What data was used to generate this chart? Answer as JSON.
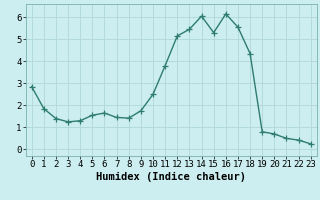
{
  "x": [
    0,
    1,
    2,
    3,
    4,
    5,
    6,
    7,
    8,
    9,
    10,
    11,
    12,
    13,
    14,
    15,
    16,
    17,
    18,
    19,
    20,
    21,
    22,
    23
  ],
  "y": [
    2.85,
    1.85,
    1.4,
    1.25,
    1.3,
    1.55,
    1.65,
    1.45,
    1.42,
    1.75,
    2.5,
    3.8,
    5.15,
    5.45,
    6.05,
    5.3,
    6.15,
    5.55,
    4.35,
    0.8,
    0.7,
    0.5,
    0.42,
    0.25
  ],
  "line_color": "#2e7d6e",
  "marker": "+",
  "markersize": 4,
  "linewidth": 1.0,
  "bg_color": "#cceef0",
  "grid_color": "#b0d8d8",
  "xlabel": "Humidex (Indice chaleur)",
  "xlabel_fontsize": 7.5,
  "tick_fontsize": 6.5,
  "ylim": [
    -0.3,
    6.6
  ],
  "xlim": [
    -0.5,
    23.5
  ],
  "yticks": [
    0,
    1,
    2,
    3,
    4,
    5,
    6
  ],
  "xticks": [
    0,
    1,
    2,
    3,
    4,
    5,
    6,
    7,
    8,
    9,
    10,
    11,
    12,
    13,
    14,
    15,
    16,
    17,
    18,
    19,
    20,
    21,
    22,
    23
  ]
}
